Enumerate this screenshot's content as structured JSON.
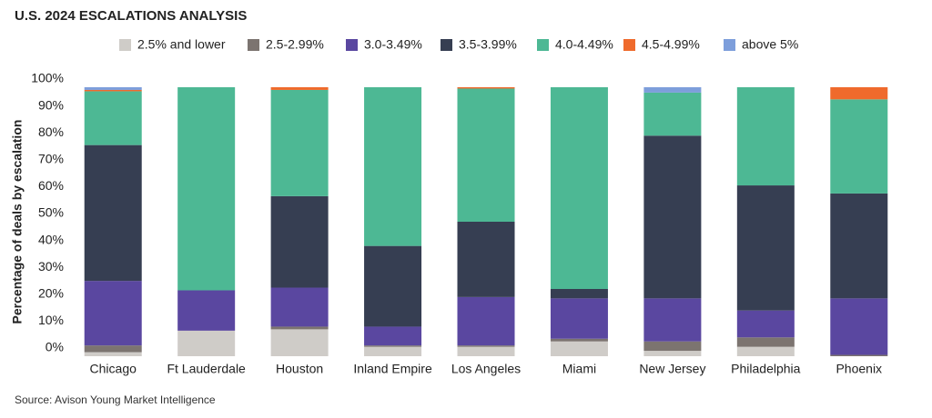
{
  "chart_data": {
    "type": "stacked-bar",
    "title": "U.S. 2024 ESCALATIONS ANALYSIS",
    "y_label": "Percentage of deals by escalation",
    "source": "Source: Avison Young Market Intelligence",
    "categories": [
      "Chicago",
      "Ft Lauderdale",
      "Houston",
      "Inland Empire",
      "Los Angeles",
      "Miami",
      "New Jersey",
      "Philadelphia",
      "Phoenix"
    ],
    "series": [
      {
        "name": "2.5% and lower",
        "color": "#cfccc8",
        "values": [
          1.5,
          9.5,
          10,
          3.5,
          3.5,
          5.5,
          2,
          3.5,
          0
        ]
      },
      {
        "name": "2.5-2.99%",
        "color": "#7c7470",
        "values": [
          2.5,
          0,
          1,
          0.5,
          0.5,
          1,
          3.5,
          3.5,
          0.5
        ]
      },
      {
        "name": "3.0-3.49%",
        "color": "#5a47a0",
        "values": [
          24,
          15,
          14.5,
          7,
          18,
          15,
          16,
          10,
          21
        ]
      },
      {
        "name": "3.5-3.99%",
        "color": "#363e52",
        "values": [
          50.5,
          0,
          34,
          30,
          28,
          3.5,
          60.5,
          46.5,
          39
        ]
      },
      {
        "name": "4.0-4.49%",
        "color": "#4db894",
        "values": [
          20,
          75.5,
          39.5,
          59,
          49.5,
          75,
          16,
          36.5,
          35
        ]
      },
      {
        "name": "4.5-4.99%",
        "color": "#ef6a2c",
        "values": [
          0.5,
          0,
          1,
          0,
          0.5,
          0,
          0,
          0,
          4.5
        ]
      },
      {
        "name": "above 5%",
        "color": "#7d9edb",
        "values": [
          1,
          0,
          0,
          0,
          0,
          0,
          2,
          0,
          0
        ]
      }
    ],
    "ylim": [
      0,
      100
    ],
    "yticks": [
      {
        "value": 0,
        "label": "0%"
      },
      {
        "value": 10,
        "label": "10%"
      },
      {
        "value": 20,
        "label": "20%"
      },
      {
        "value": 30,
        "label": "30%"
      },
      {
        "value": 40,
        "label": "40%"
      },
      {
        "value": 50,
        "label": "50%"
      },
      {
        "value": 60,
        "label": "60%"
      },
      {
        "value": 70,
        "label": "70%"
      },
      {
        "value": 80,
        "label": "80%"
      },
      {
        "value": 90,
        "label": "90%"
      },
      {
        "value": 100,
        "label": "100%"
      }
    ],
    "grid": false
  }
}
